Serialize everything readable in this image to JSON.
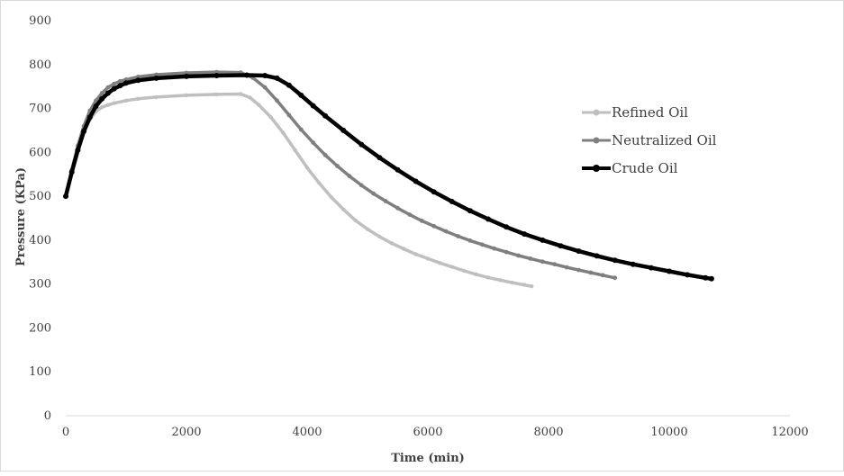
{
  "chart_data": {
    "type": "line",
    "title": "",
    "xlabel": "Time (min)",
    "ylabel": "Pressure (KPa)",
    "xlim": [
      0,
      12000
    ],
    "ylim": [
      0,
      900
    ],
    "xticks": [
      0,
      2000,
      4000,
      6000,
      8000,
      10000,
      12000
    ],
    "yticks": [
      0,
      100,
      200,
      300,
      400,
      500,
      600,
      700,
      800,
      900
    ],
    "grid": false,
    "legend_position": "right",
    "series": [
      {
        "name": "Refined Oil",
        "color": "#bfbfbf",
        "x": [
          0,
          100,
          200,
          300,
          400,
          500,
          600,
          700,
          800,
          1000,
          1200,
          1500,
          2000,
          2500,
          2900,
          3050,
          3200,
          3400,
          3600,
          3800,
          4000,
          4200,
          4400,
          4600,
          4800,
          5000,
          5200,
          5400,
          5600,
          5800,
          6000,
          6200,
          6400,
          6600,
          6800,
          7000,
          7200,
          7400,
          7600,
          7720
        ],
        "y": [
          500,
          555,
          605,
          645,
          675,
          693,
          703,
          708,
          712,
          718,
          722,
          726,
          730,
          732,
          733,
          725,
          708,
          680,
          645,
          605,
          565,
          530,
          498,
          470,
          445,
          425,
          408,
          393,
          380,
          368,
          358,
          348,
          339,
          330,
          322,
          315,
          309,
          303,
          298,
          295
        ]
      },
      {
        "name": "Neutralized Oil",
        "color": "#7f7f7f",
        "x": [
          0,
          100,
          200,
          300,
          400,
          500,
          600,
          700,
          800,
          900,
          1000,
          1200,
          1500,
          2000,
          2500,
          2900,
          3100,
          3300,
          3500,
          3700,
          3900,
          4100,
          4300,
          4500,
          4700,
          4900,
          5100,
          5300,
          5500,
          5700,
          5900,
          6100,
          6300,
          6500,
          6700,
          6900,
          7100,
          7300,
          7500,
          7700,
          7900,
          8100,
          8300,
          8500,
          8700,
          8900,
          9100
        ],
        "y": [
          500,
          560,
          615,
          660,
          695,
          718,
          735,
          748,
          756,
          762,
          766,
          772,
          777,
          781,
          783,
          782,
          770,
          748,
          718,
          685,
          652,
          622,
          594,
          569,
          546,
          525,
          506,
          489,
          473,
          458,
          444,
          432,
          420,
          409,
          399,
          390,
          381,
          373,
          365,
          358,
          351,
          345,
          338,
          332,
          326,
          320,
          314
        ]
      },
      {
        "name": "Crude Oil",
        "color": "#000000",
        "x": [
          0,
          100,
          200,
          300,
          400,
          500,
          600,
          700,
          800,
          900,
          1000,
          1200,
          1500,
          2000,
          2500,
          3000,
          3300,
          3500,
          3700,
          3900,
          4100,
          4300,
          4600,
          4900,
          5200,
          5500,
          5800,
          6100,
          6400,
          6700,
          7000,
          7300,
          7600,
          7900,
          8200,
          8500,
          8800,
          9100,
          9400,
          9700,
          10000,
          10300,
          10600,
          10700
        ],
        "y": [
          500,
          555,
          605,
          648,
          680,
          705,
          722,
          735,
          745,
          752,
          758,
          764,
          769,
          773,
          775,
          776,
          775,
          769,
          753,
          730,
          706,
          683,
          650,
          618,
          588,
          560,
          534,
          510,
          488,
          467,
          448,
          430,
          414,
          400,
          387,
          375,
          364,
          354,
          345,
          337,
          329,
          321,
          314,
          312
        ]
      }
    ]
  }
}
